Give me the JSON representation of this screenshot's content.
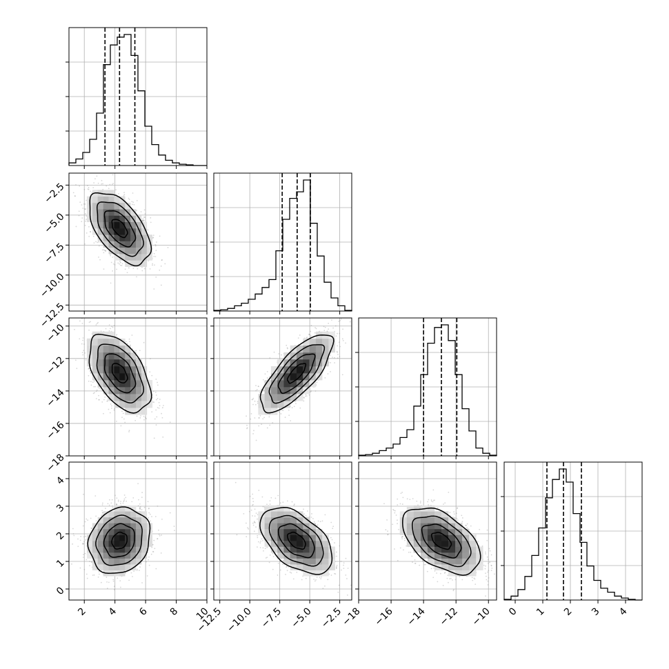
{
  "chart_data": {
    "type": "corner",
    "title": "",
    "grid": true,
    "parameters": [
      {
        "range": [
          1,
          10
        ],
        "ticks": [
          2,
          4,
          6,
          8,
          10
        ],
        "tick_labels": [
          "2",
          "4",
          "6",
          "8",
          "10"
        ],
        "quantiles": [
          3.35,
          4.3,
          5.3
        ],
        "histogram": {
          "bin_edges": [
            1.0,
            1.45,
            1.9,
            2.35,
            2.8,
            3.25,
            3.7,
            4.15,
            4.6,
            5.05,
            5.5,
            5.95,
            6.4,
            6.85,
            7.3,
            7.75,
            8.2,
            8.65,
            9.1,
            9.55,
            10.0
          ],
          "counts": [
            0.02,
            0.05,
            0.1,
            0.2,
            0.4,
            0.77,
            0.92,
            0.98,
            1.0,
            0.84,
            0.57,
            0.3,
            0.16,
            0.08,
            0.04,
            0.02,
            0.01,
            0.005,
            0,
            0
          ]
        }
      },
      {
        "range": [
          -13,
          -1.5
        ],
        "ticks": [
          -12.5,
          -10.0,
          -7.5,
          -5.0,
          -2.5
        ],
        "tick_labels": [
          "−12.5",
          "−10.0",
          "−7.5",
          "−5.0",
          "−2.5"
        ],
        "quantiles": [
          -7.3,
          -6.05,
          -4.95
        ],
        "histogram": {
          "bin_edges": [
            -13.0,
            -12.425,
            -11.85,
            -11.275,
            -10.7,
            -10.125,
            -9.55,
            -8.975,
            -8.4,
            -7.825,
            -7.25,
            -6.675,
            -6.1,
            -5.525,
            -4.95,
            -4.375,
            -3.8,
            -3.225,
            -2.65,
            -2.075,
            -1.5
          ],
          "counts": [
            0.005,
            0.01,
            0.02,
            0.04,
            0.06,
            0.09,
            0.13,
            0.18,
            0.24,
            0.46,
            0.7,
            0.86,
            0.91,
            1.0,
            0.67,
            0.42,
            0.22,
            0.1,
            0.04,
            0.005
          ]
        }
      },
      {
        "range": [
          -18,
          -9.5
        ],
        "ticks": [
          -18,
          -16,
          -14,
          -12,
          -10
        ],
        "tick_labels": [
          "−18",
          "−16",
          "−14",
          "−12",
          "−10"
        ],
        "quantiles": [
          -14.0,
          -12.9,
          -11.95
        ],
        "histogram": {
          "bin_edges": [
            -18.0,
            -17.575,
            -17.15,
            -16.725,
            -16.3,
            -15.875,
            -15.45,
            -15.025,
            -14.6,
            -14.175,
            -13.75,
            -13.325,
            -12.9,
            -12.475,
            -12.05,
            -11.625,
            -11.2,
            -10.775,
            -10.35,
            -9.925,
            -9.5
          ],
          "counts": [
            0.005,
            0.01,
            0.02,
            0.04,
            0.06,
            0.09,
            0.14,
            0.2,
            0.38,
            0.62,
            0.86,
            0.98,
            1.0,
            0.88,
            0.62,
            0.36,
            0.19,
            0.06,
            0.02,
            0.005
          ]
        }
      },
      {
        "range": [
          -0.4,
          4.6
        ],
        "ticks": [
          0,
          1,
          2,
          3,
          4
        ],
        "tick_labels": [
          "0",
          "1",
          "2",
          "3",
          "4"
        ],
        "quantiles": [
          1.15,
          1.75,
          2.4
        ],
        "histogram": {
          "bin_edges": [
            -0.4,
            -0.15,
            0.1,
            0.35,
            0.6,
            0.85,
            1.1,
            1.35,
            1.6,
            1.85,
            2.1,
            2.35,
            2.6,
            2.85,
            3.1,
            3.35,
            3.6,
            3.85,
            4.1,
            4.35,
            4.6
          ],
          "counts": [
            0.005,
            0.03,
            0.08,
            0.18,
            0.34,
            0.55,
            0.78,
            0.92,
            1.0,
            0.9,
            0.66,
            0.44,
            0.26,
            0.15,
            0.09,
            0.06,
            0.03,
            0.015,
            0.005,
            0
          ]
        }
      }
    ],
    "pairs": [
      {
        "x": 0,
        "y": 1,
        "mean": [
          4.3,
          -6.1
        ],
        "sd": [
          1.0,
          1.5
        ],
        "corr": -0.55
      },
      {
        "x": 0,
        "y": 2,
        "mean": [
          4.3,
          -12.9
        ],
        "sd": [
          1.0,
          1.2
        ],
        "corr": -0.5
      },
      {
        "x": 1,
        "y": 2,
        "mean": [
          -6.1,
          -12.9
        ],
        "sd": [
          1.5,
          1.2
        ],
        "corr": 0.75
      },
      {
        "x": 0,
        "y": 3,
        "mean": [
          4.3,
          1.75
        ],
        "sd": [
          1.0,
          0.6
        ],
        "corr": 0.15
      },
      {
        "x": 1,
        "y": 3,
        "mean": [
          -6.1,
          1.75
        ],
        "sd": [
          1.5,
          0.6
        ],
        "corr": -0.5
      },
      {
        "x": 2,
        "y": 3,
        "mean": [
          -12.9,
          1.75
        ],
        "sd": [
          1.2,
          0.6
        ],
        "corr": -0.5
      }
    ],
    "contour_levels_sigma": [
      0.5,
      1.0,
      1.5,
      2.0
    ],
    "colors": {
      "line": "#000000",
      "grid": "#b0b0b0",
      "points": "#8a8a8a",
      "density_max": "#000000"
    }
  }
}
